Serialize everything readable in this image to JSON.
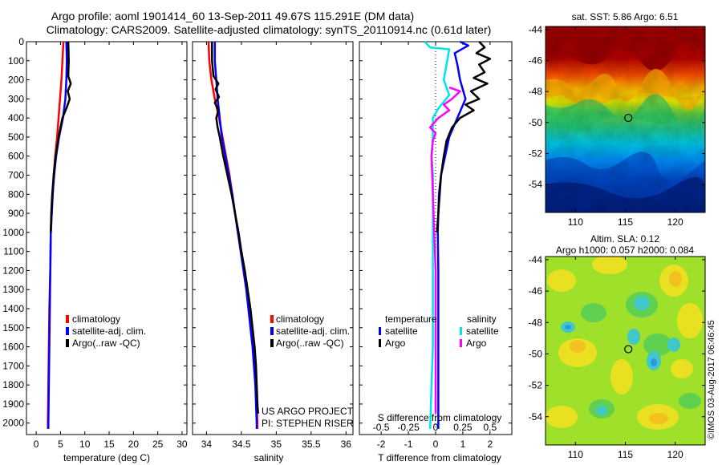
{
  "header": {
    "line1": "Argo profile: aoml 1901414_60 13-Sep-2011 49.67S 115.291E (DM data)",
    "line2": "Climatology: CARS2009. Satellite-adjusted climatology: synTS_20110914.nc (0.61d later)"
  },
  "colors": {
    "climatology": "#ff0000",
    "satellite": "#0000ff",
    "argo": "#000000",
    "cyan": "#00e5e5",
    "magenta": "#ff00ff"
  },
  "chart_data": [
    {
      "type": "line",
      "name": "temperature-panel",
      "xlabel": "temperature (deg C)",
      "ylabel": "",
      "xlim": [
        -2,
        31
      ],
      "ylim": [
        2060,
        0
      ],
      "xticks": [
        0,
        5,
        10,
        15,
        20,
        25,
        30
      ],
      "yticks": [
        0,
        100,
        200,
        300,
        400,
        500,
        600,
        700,
        800,
        900,
        1000,
        1100,
        1200,
        1300,
        1400,
        1500,
        1600,
        1700,
        1800,
        1900,
        2000
      ],
      "legend": [
        "climatology",
        "satellite-adj. clim.",
        "Argo(..raw -QC)"
      ],
      "series": [
        {
          "name": "climatology",
          "color": "#ff0000",
          "points": [
            [
              5.6,
              0
            ],
            [
              5.4,
              100
            ],
            [
              5.2,
              200
            ],
            [
              4.9,
              300
            ],
            [
              4.6,
              400
            ],
            [
              4.3,
              500
            ],
            [
              3.9,
              600
            ],
            [
              3.6,
              700
            ],
            [
              3.4,
              800
            ],
            [
              3.2,
              900
            ],
            [
              3.0,
              1000
            ],
            [
              2.9,
              1200
            ],
            [
              2.7,
              1400
            ],
            [
              2.6,
              1600
            ],
            [
              2.5,
              1800
            ],
            [
              2.4,
              2000
            ],
            [
              2.4,
              2030
            ]
          ]
        },
        {
          "name": "satellite-adj. clim.",
          "color": "#0000ff",
          "points": [
            [
              6.2,
              0
            ],
            [
              6.3,
              100
            ],
            [
              6.2,
              200
            ],
            [
              6.0,
              300
            ],
            [
              5.5,
              400
            ],
            [
              4.7,
              500
            ],
            [
              4.1,
              600
            ],
            [
              3.7,
              700
            ],
            [
              3.4,
              800
            ],
            [
              3.2,
              900
            ],
            [
              3.0,
              1000
            ],
            [
              2.9,
              1200
            ],
            [
              2.8,
              1400
            ],
            [
              2.7,
              1600
            ],
            [
              2.6,
              1800
            ],
            [
              2.5,
              2000
            ],
            [
              2.5,
              2030
            ]
          ]
        },
        {
          "name": "Argo(..raw -QC)",
          "color": "#000000",
          "points": [
            [
              6.6,
              0
            ],
            [
              6.7,
              100
            ],
            [
              6.6,
              180
            ],
            [
              7.1,
              220
            ],
            [
              6.5,
              260
            ],
            [
              6.9,
              300
            ],
            [
              6.2,
              350
            ],
            [
              5.4,
              400
            ],
            [
              4.6,
              500
            ],
            [
              4.0,
              600
            ],
            [
              3.6,
              700
            ],
            [
              3.3,
              800
            ],
            [
              3.1,
              900
            ],
            [
              3.0,
              1000
            ]
          ]
        }
      ]
    },
    {
      "type": "line",
      "name": "salinity-panel",
      "xlabel": "salinity",
      "ylabel": "",
      "xlim": [
        33.8,
        36.1
      ],
      "ylim": [
        2060,
        0
      ],
      "xticks": [
        34,
        34.5,
        35,
        35.5,
        36
      ],
      "legend": [
        "climatology",
        "satellite-adj. clim.",
        "Argo(..raw -QC)"
      ],
      "series": [
        {
          "name": "climatology",
          "color": "#ff0000",
          "points": [
            [
              34.03,
              0
            ],
            [
              34.04,
              100
            ],
            [
              34.07,
              200
            ],
            [
              34.12,
              300
            ],
            [
              34.18,
              400
            ],
            [
              34.23,
              500
            ],
            [
              34.28,
              600
            ],
            [
              34.33,
              700
            ],
            [
              34.37,
              800
            ],
            [
              34.41,
              900
            ],
            [
              34.45,
              1000
            ],
            [
              34.5,
              1100
            ],
            [
              34.54,
              1200
            ],
            [
              34.58,
              1300
            ],
            [
              34.62,
              1400
            ],
            [
              34.65,
              1500
            ],
            [
              34.68,
              1600
            ],
            [
              34.7,
              1700
            ],
            [
              34.71,
              1800
            ],
            [
              34.72,
              1900
            ],
            [
              34.73,
              2000
            ],
            [
              34.73,
              2030
            ]
          ]
        },
        {
          "name": "satellite-adj. clim.",
          "color": "#0000ff",
          "points": [
            [
              34.12,
              0
            ],
            [
              34.12,
              100
            ],
            [
              34.14,
              200
            ],
            [
              34.16,
              300
            ],
            [
              34.19,
              400
            ],
            [
              34.22,
              500
            ],
            [
              34.27,
              600
            ],
            [
              34.32,
              700
            ],
            [
              34.37,
              800
            ],
            [
              34.41,
              900
            ],
            [
              34.45,
              1000
            ],
            [
              34.49,
              1100
            ],
            [
              34.53,
              1200
            ],
            [
              34.57,
              1300
            ],
            [
              34.6,
              1400
            ],
            [
              34.63,
              1500
            ],
            [
              34.66,
              1600
            ],
            [
              34.68,
              1700
            ],
            [
              34.7,
              1800
            ],
            [
              34.71,
              1900
            ],
            [
              34.72,
              2000
            ],
            [
              34.72,
              2030
            ]
          ]
        },
        {
          "name": "Argo(..raw -QC)",
          "color": "#000000",
          "points": [
            [
              34.08,
              0
            ],
            [
              34.08,
              100
            ],
            [
              34.1,
              180
            ],
            [
              34.17,
              220
            ],
            [
              34.13,
              250
            ],
            [
              34.18,
              290
            ],
            [
              34.12,
              320
            ],
            [
              34.17,
              360
            ],
            [
              34.14,
              400
            ],
            [
              34.16,
              450
            ],
            [
              34.19,
              500
            ],
            [
              34.24,
              600
            ],
            [
              34.3,
              700
            ],
            [
              34.36,
              800
            ],
            [
              34.41,
              900
            ],
            [
              34.46,
              1000
            ],
            [
              34.5,
              1100
            ],
            [
              34.55,
              1200
            ],
            [
              34.59,
              1300
            ],
            [
              34.63,
              1400
            ],
            [
              34.66,
              1500
            ],
            [
              34.69,
              1600
            ],
            [
              34.71,
              1700
            ],
            [
              34.72,
              1800
            ],
            [
              34.73,
              1900
            ],
            [
              34.74,
              1950
            ]
          ]
        }
      ]
    },
    {
      "type": "line",
      "name": "difference-panel",
      "xlabel": "T difference from climatology",
      "xlabel_top": "S difference from climatology",
      "xlim": [
        -2.8,
        2.8
      ],
      "ylim": [
        2060,
        0
      ],
      "xticks": [
        -2,
        -1,
        0,
        1,
        2
      ],
      "sticks": [
        "-0.5",
        "-0.25",
        "0",
        "0.25",
        "0.5"
      ],
      "sticks_pos": [
        -2,
        -1,
        0,
        1,
        2
      ],
      "legend_headers": [
        "temperature",
        "salinity"
      ],
      "legend": [
        "satellite",
        "Argo",
        "satellite",
        "Argo"
      ],
      "series": [
        {
          "name": "satellite",
          "color": "#0000ff",
          "points": [
            [
              0.9,
              0
            ],
            [
              1.2,
              20
            ],
            [
              0.7,
              60
            ],
            [
              0.8,
              120
            ],
            [
              0.9,
              200
            ],
            [
              1.1,
              300
            ],
            [
              0.8,
              400
            ],
            [
              0.5,
              500
            ],
            [
              0.35,
              600
            ],
            [
              0.2,
              700
            ],
            [
              0.12,
              800
            ],
            [
              0.08,
              1000
            ],
            [
              0.1,
              1200
            ],
            [
              0.1,
              1400
            ],
            [
              0.1,
              1700
            ],
            [
              0.1,
              2030
            ]
          ]
        },
        {
          "name": "Argo",
          "color": "#000000",
          "points": [
            [
              1.6,
              0
            ],
            [
              1.8,
              30
            ],
            [
              1.5,
              60
            ],
            [
              2.0,
              90
            ],
            [
              1.6,
              120
            ],
            [
              1.8,
              160
            ],
            [
              1.4,
              190
            ],
            [
              1.9,
              220
            ],
            [
              1.3,
              260
            ],
            [
              1.6,
              300
            ],
            [
              1.1,
              330
            ],
            [
              1.4,
              360
            ],
            [
              0.9,
              400
            ],
            [
              0.6,
              450
            ],
            [
              0.4,
              520
            ],
            [
              0.3,
              600
            ],
            [
              0.2,
              700
            ],
            [
              0.15,
              800
            ],
            [
              0.1,
              900
            ],
            [
              0.05,
              1000
            ]
          ]
        },
        {
          "name": "satellite",
          "color": "#00e5e5",
          "points": [
            [
              -0.4,
              0
            ],
            [
              -0.2,
              30
            ],
            [
              0.5,
              40
            ],
            [
              0.4,
              120
            ],
            [
              0.3,
              200
            ],
            [
              0.5,
              280
            ],
            [
              0.1,
              350
            ],
            [
              -0.1,
              400
            ],
            [
              -0.1,
              500
            ],
            [
              -0.15,
              600
            ],
            [
              -0.1,
              700
            ],
            [
              -0.1,
              1000
            ],
            [
              -0.1,
              1300
            ],
            [
              -0.1,
              1600
            ],
            [
              -0.15,
              1800
            ],
            [
              -0.2,
              2030
            ]
          ]
        },
        {
          "name": "Argo",
          "color": "#ff00ff",
          "points": [
            [
              0.5,
              240
            ],
            [
              0.9,
              260
            ],
            [
              0.6,
              300
            ],
            [
              0.3,
              330
            ],
            [
              0.5,
              360
            ],
            [
              0.1,
              400
            ],
            [
              -0.2,
              450
            ],
            [
              0.0,
              480
            ],
            [
              -0.1,
              520
            ],
            [
              -0.15,
              600
            ],
            [
              -0.1,
              800
            ],
            [
              -0.05,
              1000
            ],
            [
              0.0,
              1200
            ],
            [
              0.0,
              1500
            ],
            [
              0.0,
              1800
            ],
            [
              0.0,
              1950
            ]
          ]
        }
      ]
    },
    {
      "type": "heatmap",
      "name": "sst-map",
      "title": "sat. SST: 5.86  Argo: 6.51",
      "xticks": [
        110,
        115,
        120
      ],
      "yticks": [
        -44,
        -46,
        -48,
        -50,
        -52,
        -54
      ],
      "xlim": [
        107,
        123
      ],
      "ylim": [
        -55.8,
        -43.8
      ],
      "argo_position": [
        115.3,
        -49.7
      ]
    },
    {
      "type": "heatmap",
      "name": "sla-map",
      "title_line1": "Altim. SLA: 0.12",
      "title_line2": "Argo h1000: 0.057 h2000: 0.084",
      "xticks": [
        110,
        115,
        120
      ],
      "yticks": [
        -44,
        -46,
        -48,
        -50,
        -52,
        -54
      ],
      "xlim": [
        107,
        123
      ],
      "ylim": [
        -55.8,
        -43.8
      ],
      "argo_position": [
        115.3,
        -49.7
      ]
    }
  ],
  "annotations": {
    "project": "US ARGO PROJECT",
    "pi": "PI: STEPHEN RISER",
    "imos_stamp": "©IMOS 03-Aug-2017 06:46:45"
  }
}
